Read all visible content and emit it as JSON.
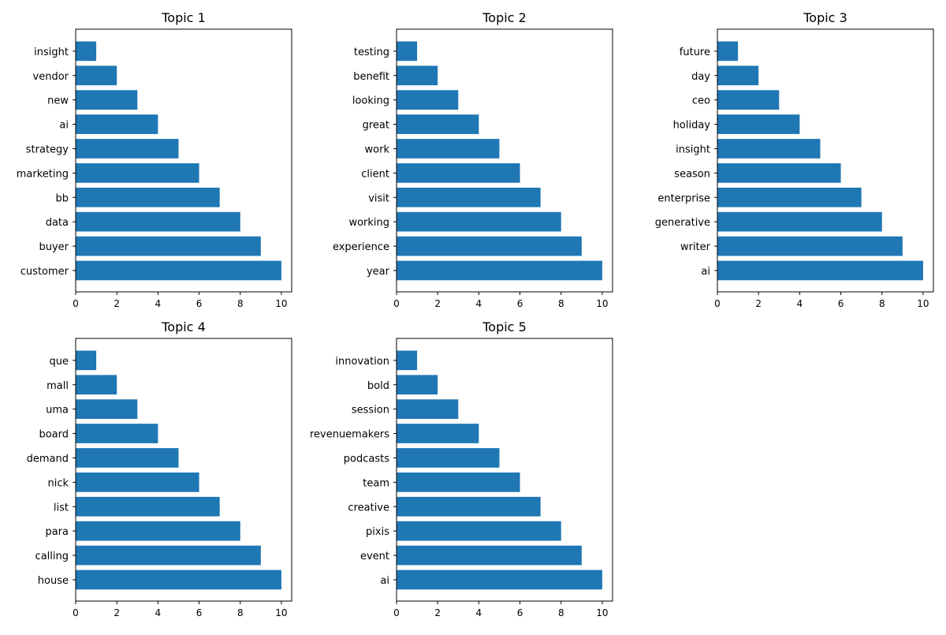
{
  "chart_data": [
    {
      "type": "bar",
      "orientation": "horizontal",
      "title": "Topic 1",
      "categories": [
        "insight",
        "vendor",
        "new",
        "ai",
        "strategy",
        "marketing",
        "bb",
        "data",
        "buyer",
        "customer"
      ],
      "values": [
        1,
        2,
        3,
        4,
        5,
        6,
        7,
        8,
        9,
        10
      ],
      "xlim": [
        0,
        10.5
      ],
      "xticks": [
        0,
        2,
        4,
        6,
        8,
        10
      ],
      "grid": false,
      "color": "#1f77b4"
    },
    {
      "type": "bar",
      "orientation": "horizontal",
      "title": "Topic 2",
      "categories": [
        "testing",
        "benefit",
        "looking",
        "great",
        "work",
        "client",
        "visit",
        "working",
        "experience",
        "year"
      ],
      "values": [
        1,
        2,
        3,
        4,
        5,
        6,
        7,
        8,
        9,
        10
      ],
      "xlim": [
        0,
        10.5
      ],
      "xticks": [
        0,
        2,
        4,
        6,
        8,
        10
      ],
      "grid": false,
      "color": "#1f77b4"
    },
    {
      "type": "bar",
      "orientation": "horizontal",
      "title": "Topic 3",
      "categories": [
        "future",
        "day",
        "ceo",
        "holiday",
        "insight",
        "season",
        "enterprise",
        "generative",
        "writer",
        "ai"
      ],
      "values": [
        1,
        2,
        3,
        4,
        5,
        6,
        7,
        8,
        9,
        10
      ],
      "xlim": [
        0,
        10.5
      ],
      "xticks": [
        0,
        2,
        4,
        6,
        8,
        10
      ],
      "grid": false,
      "color": "#1f77b4"
    },
    {
      "type": "bar",
      "orientation": "horizontal",
      "title": "Topic 4",
      "categories": [
        "que",
        "mall",
        "uma",
        "board",
        "demand",
        "nick",
        "list",
        "para",
        "calling",
        "house"
      ],
      "values": [
        1,
        2,
        3,
        4,
        5,
        6,
        7,
        8,
        9,
        10
      ],
      "xlim": [
        0,
        10.5
      ],
      "xticks": [
        0,
        2,
        4,
        6,
        8,
        10
      ],
      "grid": false,
      "color": "#1f77b4"
    },
    {
      "type": "bar",
      "orientation": "horizontal",
      "title": "Topic 5",
      "categories": [
        "innovation",
        "bold",
        "session",
        "revenuemakers",
        "podcasts",
        "team",
        "creative",
        "pixis",
        "event",
        "ai"
      ],
      "values": [
        1,
        2,
        3,
        4,
        5,
        6,
        7,
        8,
        9,
        10
      ],
      "xlim": [
        0,
        10.5
      ],
      "xticks": [
        0,
        2,
        4,
        6,
        8,
        10
      ],
      "grid": false,
      "color": "#1f77b4"
    }
  ]
}
